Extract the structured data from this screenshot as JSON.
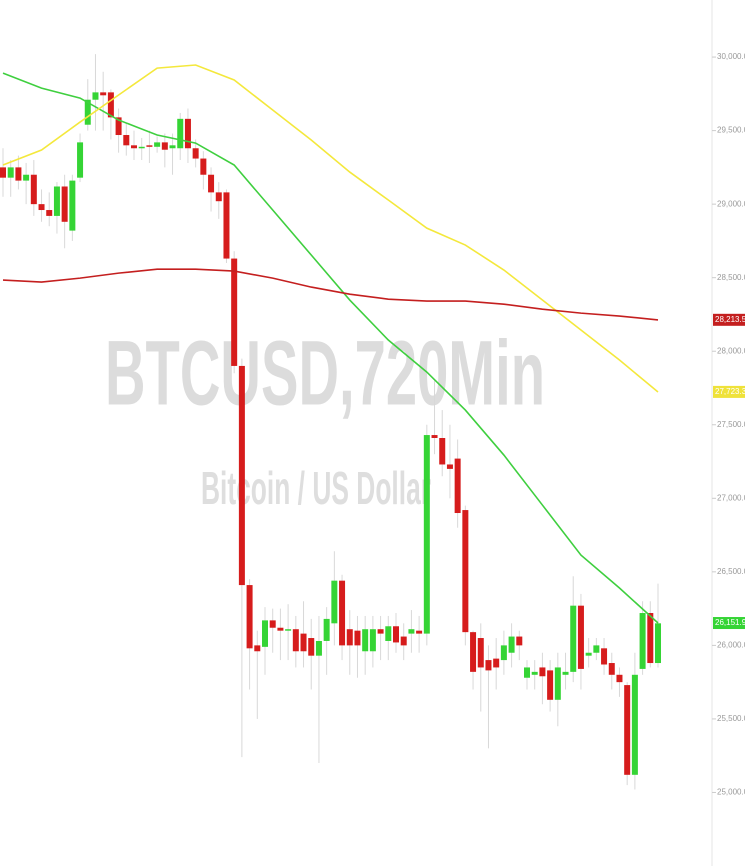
{
  "chart_data": {
    "type": "candlestick",
    "title": "BTCUSD,720Min",
    "subtitle": "Bitcoin / US Dollar",
    "open": [
      29250,
      29180,
      29250,
      29160,
      29200,
      29000,
      28960,
      28920,
      29120,
      28820,
      29180,
      29540,
      29710,
      29760,
      29760,
      29590,
      29470,
      29400,
      29380,
      29400,
      29390,
      29420,
      29380,
      29380,
      29580,
      29380,
      29310,
      29200,
      29080,
      29080,
      28630,
      27900,
      26410,
      26000,
      25990,
      26170,
      26120,
      26100,
      26110,
      26080,
      26050,
      25930,
      26030,
      26150,
      26440,
      26110,
      26100,
      25960,
      25960,
      26110,
      26030,
      26130,
      26060,
      26080,
      26100,
      26080,
      27430,
      27410,
      27230,
      27270,
      26920,
      26090,
      26050,
      25900,
      25910,
      25900,
      25950,
      26060,
      25780,
      25800,
      25850,
      25830,
      25630,
      25800,
      25820,
      26270,
      25930,
      25950,
      25980,
      25880,
      25800,
      25730,
      25120,
      25840,
      26220,
      25880
    ],
    "high": [
      29380,
      29300,
      29330,
      29280,
      29300,
      29100,
      29080,
      29150,
      29200,
      29200,
      29480,
      29850,
      30020,
      29900,
      29780,
      29650,
      29550,
      29500,
      29450,
      29500,
      29460,
      29480,
      29480,
      29620,
      29650,
      29440,
      29360,
      29250,
      29150,
      29100,
      28680,
      27950,
      26450,
      26100,
      26260,
      26250,
      26250,
      26280,
      26200,
      26300,
      26180,
      26200,
      26260,
      26640,
      26480,
      26240,
      26200,
      26200,
      26200,
      26200,
      26200,
      26220,
      26150,
      26240,
      26200,
      27500,
      27800,
      27600,
      27500,
      27400,
      26950,
      26100,
      26150,
      26000,
      26050,
      26100,
      26150,
      26100,
      25900,
      25900,
      25950,
      25900,
      25950,
      25950,
      26470,
      26350,
      26050,
      26050,
      26050,
      25950,
      25850,
      25750,
      25950,
      26300,
      26300,
      26420
    ],
    "low": [
      29050,
      29050,
      29100,
      29000,
      28920,
      28880,
      28850,
      28800,
      28700,
      28750,
      29150,
      29500,
      29500,
      29500,
      29440,
      29350,
      29330,
      29300,
      29300,
      29280,
      29350,
      29250,
      29200,
      29300,
      29280,
      29250,
      29100,
      28950,
      28900,
      28600,
      27850,
      25240,
      25700,
      25500,
      25800,
      25950,
      25900,
      25900,
      25850,
      25850,
      25700,
      25200,
      25800,
      26000,
      25900,
      25800,
      25780,
      25800,
      25850,
      25900,
      25900,
      25950,
      25900,
      25950,
      25950,
      26000,
      27300,
      27150,
      27000,
      26800,
      26000,
      25700,
      25550,
      25300,
      25700,
      25800,
      25850,
      25900,
      25700,
      25700,
      25600,
      25550,
      25450,
      25700,
      25750,
      25700,
      25850,
      25900,
      25800,
      25700,
      25650,
      25050,
      25020,
      25800,
      25850,
      25850
    ],
    "close": [
      29180,
      29250,
      29160,
      29200,
      29000,
      28960,
      28920,
      29120,
      28880,
      29160,
      29420,
      29710,
      29760,
      29740,
      29590,
      29470,
      29400,
      29380,
      29390,
      29390,
      29420,
      29370,
      29400,
      29580,
      29380,
      29310,
      29200,
      29080,
      29020,
      28630,
      27900,
      26410,
      25980,
      25960,
      26170,
      26120,
      26100,
      26110,
      25960,
      25960,
      25930,
      26030,
      26180,
      26440,
      26000,
      26000,
      26000,
      26110,
      26110,
      26080,
      26130,
      26020,
      26000,
      26110,
      26080,
      27430,
      27410,
      27230,
      27200,
      26900,
      26090,
      25820,
      25850,
      25830,
      25850,
      26000,
      26060,
      26000,
      25850,
      25820,
      25790,
      25630,
      25850,
      25820,
      26270,
      25840,
      25950,
      26000,
      25870,
      25800,
      25750,
      25120,
      25800,
      26220,
      25880,
      26150
    ],
    "up_color": "#35d435",
    "down_color": "#d61c1c",
    "series": [
      {
        "color": "#3fcf3f",
        "x": [
          0,
          5,
          10,
          15,
          20,
          25,
          30,
          35,
          40,
          45,
          50,
          55,
          60,
          65,
          70,
          75,
          80,
          85
        ],
        "values": [
          29891,
          29789,
          29721,
          29572,
          29470,
          29415,
          29266,
          28960,
          28654,
          28348,
          28076,
          27858,
          27600,
          27294,
          26954,
          26614,
          26390,
          26152
        ]
      },
      {
        "color": "#f4e83c",
        "x": [
          0,
          5,
          10,
          15,
          20,
          25,
          30,
          35,
          40,
          45,
          50,
          55,
          60,
          65,
          70,
          75,
          80,
          85
        ],
        "values": [
          29266,
          29368,
          29558,
          29742,
          29925,
          29946,
          29844,
          29640,
          29436,
          29218,
          29028,
          28837,
          28722,
          28552,
          28348,
          28144,
          27940,
          27723
        ]
      },
      {
        "color": "#c41f1f",
        "x": [
          0,
          5,
          10,
          15,
          20,
          25,
          30,
          35,
          40,
          45,
          50,
          55,
          60,
          65,
          70,
          75,
          80,
          85
        ],
        "values": [
          28484,
          28470,
          28497,
          28531,
          28558,
          28558,
          28545,
          28497,
          28436,
          28388,
          28354,
          28341,
          28341,
          28320,
          28286,
          28259,
          28239,
          28213
        ]
      }
    ],
    "price_labels": [
      {
        "value": 28213.54,
        "label": "28,213.54",
        "color": "#c41f1f"
      },
      {
        "value": 27723.38,
        "label": "27,723.38",
        "color": "#efe23a"
      },
      {
        "value": 26151.99,
        "label": "26,151.99",
        "color": "#35d435"
      }
    ],
    "ylim": [
      24500,
      30388
    ],
    "yticks": [
      {
        "value": 30000,
        "label": "30,000.00"
      },
      {
        "value": 29500,
        "label": "29,500.00"
      },
      {
        "value": 29000,
        "label": "29,000.00"
      },
      {
        "value": 28500,
        "label": "28,500.00"
      },
      {
        "value": 28000,
        "label": "28,000.00"
      },
      {
        "value": 27500,
        "label": "27,500.00"
      },
      {
        "value": 27000,
        "label": "27,000.00"
      },
      {
        "value": 26500,
        "label": "26,500.00"
      },
      {
        "value": 26000,
        "label": "26,000.00"
      },
      {
        "value": 25500,
        "label": "25,500.00"
      },
      {
        "value": 25000,
        "label": "25,000.00"
      }
    ]
  }
}
